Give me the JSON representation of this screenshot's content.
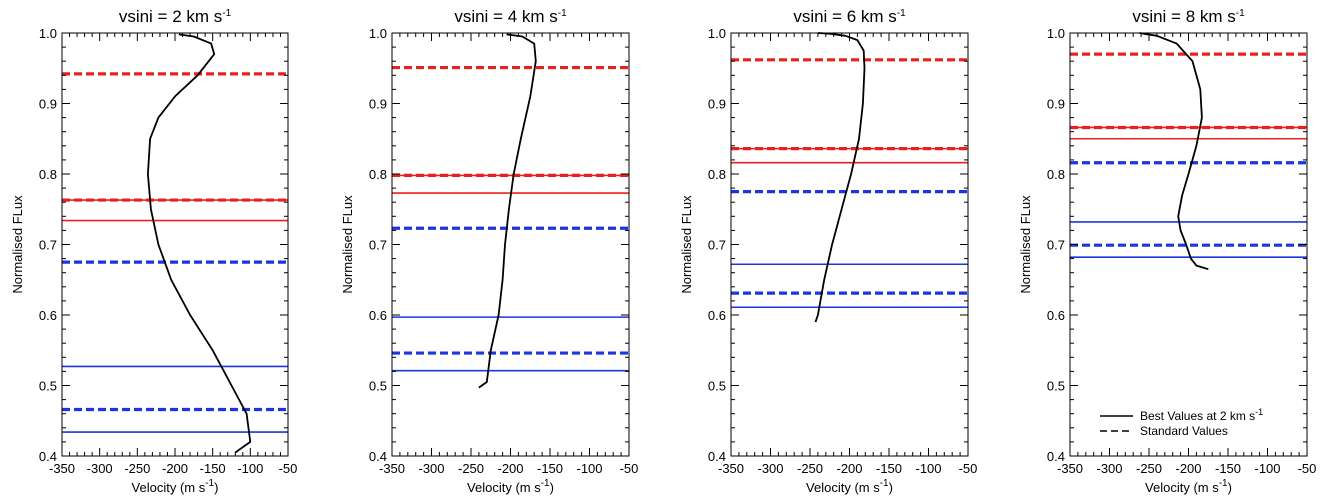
{
  "chart_data": [
    {
      "type": "line",
      "title": "vsini = 2 km s",
      "title_sup": "-1",
      "xlabel": "Velocity (m s",
      "xlabel_sup": "-1",
      "xlabel_end": ")",
      "ylabel": "Normalised FLux",
      "xlim": [
        -350,
        -50
      ],
      "ylim": [
        0.4,
        1.0
      ],
      "xticks": [
        "-350",
        "-300",
        "-250",
        "-200",
        "-150",
        "-100",
        "-50"
      ],
      "yticks": [
        "0.4",
        "0.5",
        "0.6",
        "0.7",
        "0.8",
        "0.9",
        "1.0"
      ],
      "bisector": {
        "x": [
          -120,
          -100,
          -105,
          -125,
          -150,
          -180,
          -205,
          -222,
          -232,
          -236,
          -233,
          -222,
          -200,
          -170,
          -148,
          -152,
          -175,
          -195
        ],
        "y": [
          0.405,
          0.42,
          0.46,
          0.5,
          0.55,
          0.6,
          0.65,
          0.7,
          0.75,
          0.8,
          0.85,
          0.88,
          0.91,
          0.94,
          0.97,
          0.985,
          0.995,
          0.998
        ]
      },
      "hlines": [
        {
          "y": 0.942,
          "color": "#e8201e",
          "style": "dashed"
        },
        {
          "y": 0.763,
          "color": "#e8201e",
          "style": "dashed"
        },
        {
          "y": 0.763,
          "color": "#e8201e",
          "style": "solid"
        },
        {
          "y": 0.734,
          "color": "#e8201e",
          "style": "solid"
        },
        {
          "y": 0.675,
          "color": "#1d35e0",
          "style": "dashed"
        },
        {
          "y": 0.527,
          "color": "#1d35e0",
          "style": "solid"
        },
        {
          "y": 0.466,
          "color": "#1d35e0",
          "style": "dashed"
        },
        {
          "y": 0.434,
          "color": "#1d35e0",
          "style": "solid"
        }
      ]
    },
    {
      "type": "line",
      "title": "vsini = 4 km s",
      "title_sup": "-1",
      "xlabel": "Velocity (m s",
      "xlabel_sup": "-1",
      "xlabel_end": ")",
      "ylabel": "Normalised FLux",
      "xlim": [
        -350,
        -50
      ],
      "ylim": [
        0.4,
        1.0
      ],
      "xticks": [
        "-350",
        "-300",
        "-250",
        "-200",
        "-150",
        "-100",
        "-50"
      ],
      "yticks": [
        "0.4",
        "0.5",
        "0.6",
        "0.7",
        "0.8",
        "0.9",
        "1.0"
      ],
      "bisector": {
        "x": [
          -240,
          -230,
          -225,
          -215,
          -210,
          -207,
          -202,
          -196,
          -187,
          -175,
          -168,
          -170,
          -185,
          -205
        ],
        "y": [
          0.497,
          0.505,
          0.55,
          0.6,
          0.65,
          0.7,
          0.75,
          0.8,
          0.85,
          0.91,
          0.96,
          0.985,
          0.995,
          0.998
        ]
      },
      "hlines": [
        {
          "y": 0.951,
          "color": "#e8201e",
          "style": "dashed"
        },
        {
          "y": 0.798,
          "color": "#e8201e",
          "style": "dashed"
        },
        {
          "y": 0.798,
          "color": "#e8201e",
          "style": "solid"
        },
        {
          "y": 0.773,
          "color": "#e8201e",
          "style": "solid"
        },
        {
          "y": 0.723,
          "color": "#1d35e0",
          "style": "dashed"
        },
        {
          "y": 0.597,
          "color": "#1d35e0",
          "style": "solid"
        },
        {
          "y": 0.546,
          "color": "#1d35e0",
          "style": "dashed"
        },
        {
          "y": 0.521,
          "color": "#1d35e0",
          "style": "solid"
        }
      ]
    },
    {
      "type": "line",
      "title": "vsini = 6 km s",
      "title_sup": "-1",
      "xlabel": "Velocity (m s",
      "xlabel_sup": "-1",
      "xlabel_end": ")",
      "ylabel": "Normalised FLux",
      "xlim": [
        -350,
        -50
      ],
      "ylim": [
        0.4,
        1.0
      ],
      "xticks": [
        "-350",
        "-300",
        "-250",
        "-200",
        "-150",
        "-100",
        "-50"
      ],
      "yticks": [
        "0.4",
        "0.5",
        "0.6",
        "0.7",
        "0.8",
        "0.9",
        "1.0"
      ],
      "bisector": {
        "x": [
          -243,
          -240,
          -232,
          -222,
          -210,
          -198,
          -188,
          -183,
          -181,
          -182,
          -190,
          -205,
          -225,
          -240
        ],
        "y": [
          0.59,
          0.6,
          0.65,
          0.7,
          0.75,
          0.8,
          0.85,
          0.9,
          0.95,
          0.975,
          0.99,
          0.996,
          0.999,
          1.0
        ]
      },
      "hlines": [
        {
          "y": 0.962,
          "color": "#e8201e",
          "style": "dashed"
        },
        {
          "y": 0.836,
          "color": "#e8201e",
          "style": "dashed"
        },
        {
          "y": 0.836,
          "color": "#e8201e",
          "style": "solid"
        },
        {
          "y": 0.816,
          "color": "#e8201e",
          "style": "solid"
        },
        {
          "y": 0.775,
          "color": "#1d35e0",
          "style": "dashed"
        },
        {
          "y": 0.672,
          "color": "#1d35e0",
          "style": "solid"
        },
        {
          "y": 0.631,
          "color": "#1d35e0",
          "style": "dashed"
        },
        {
          "y": 0.611,
          "color": "#1d35e0",
          "style": "solid"
        }
      ]
    },
    {
      "type": "line",
      "title": "vsini = 8 km s",
      "title_sup": "-1",
      "xlabel": "Velocity (m s",
      "xlabel_sup": "-1",
      "xlabel_end": ")",
      "ylabel": "Normalised FLux",
      "xlim": [
        -350,
        -50
      ],
      "ylim": [
        0.4,
        1.0
      ],
      "xticks": [
        "-350",
        "-300",
        "-250",
        "-200",
        "-150",
        "-100",
        "-50"
      ],
      "yticks": [
        "0.4",
        "0.5",
        "0.6",
        "0.7",
        "0.8",
        "0.9",
        "1.0"
      ],
      "bisector": {
        "x": [
          -175,
          -190,
          -197,
          -203,
          -210,
          -213,
          -208,
          -200,
          -190,
          -183,
          -185,
          -195,
          -215,
          -240,
          -262
        ],
        "y": [
          0.665,
          0.67,
          0.68,
          0.7,
          0.72,
          0.74,
          0.77,
          0.8,
          0.84,
          0.88,
          0.92,
          0.96,
          0.985,
          0.996,
          1.0
        ]
      },
      "hlines": [
        {
          "y": 0.97,
          "color": "#e8201e",
          "style": "dashed"
        },
        {
          "y": 0.866,
          "color": "#e8201e",
          "style": "dashed"
        },
        {
          "y": 0.866,
          "color": "#e8201e",
          "style": "solid"
        },
        {
          "y": 0.85,
          "color": "#e8201e",
          "style": "solid"
        },
        {
          "y": 0.816,
          "color": "#1d35e0",
          "style": "dashed"
        },
        {
          "y": 0.732,
          "color": "#1d35e0",
          "style": "solid"
        },
        {
          "y": 0.699,
          "color": "#1d35e0",
          "style": "dashed"
        },
        {
          "y": 0.682,
          "color": "#1d35e0",
          "style": "solid"
        }
      ],
      "legend": {
        "placement": "bottom-right",
        "items": [
          {
            "label": "Best Values at 2 km s",
            "label_sup": "-1",
            "style": "solid"
          },
          {
            "label": "Standard Values",
            "style": "dashed"
          }
        ]
      }
    }
  ]
}
